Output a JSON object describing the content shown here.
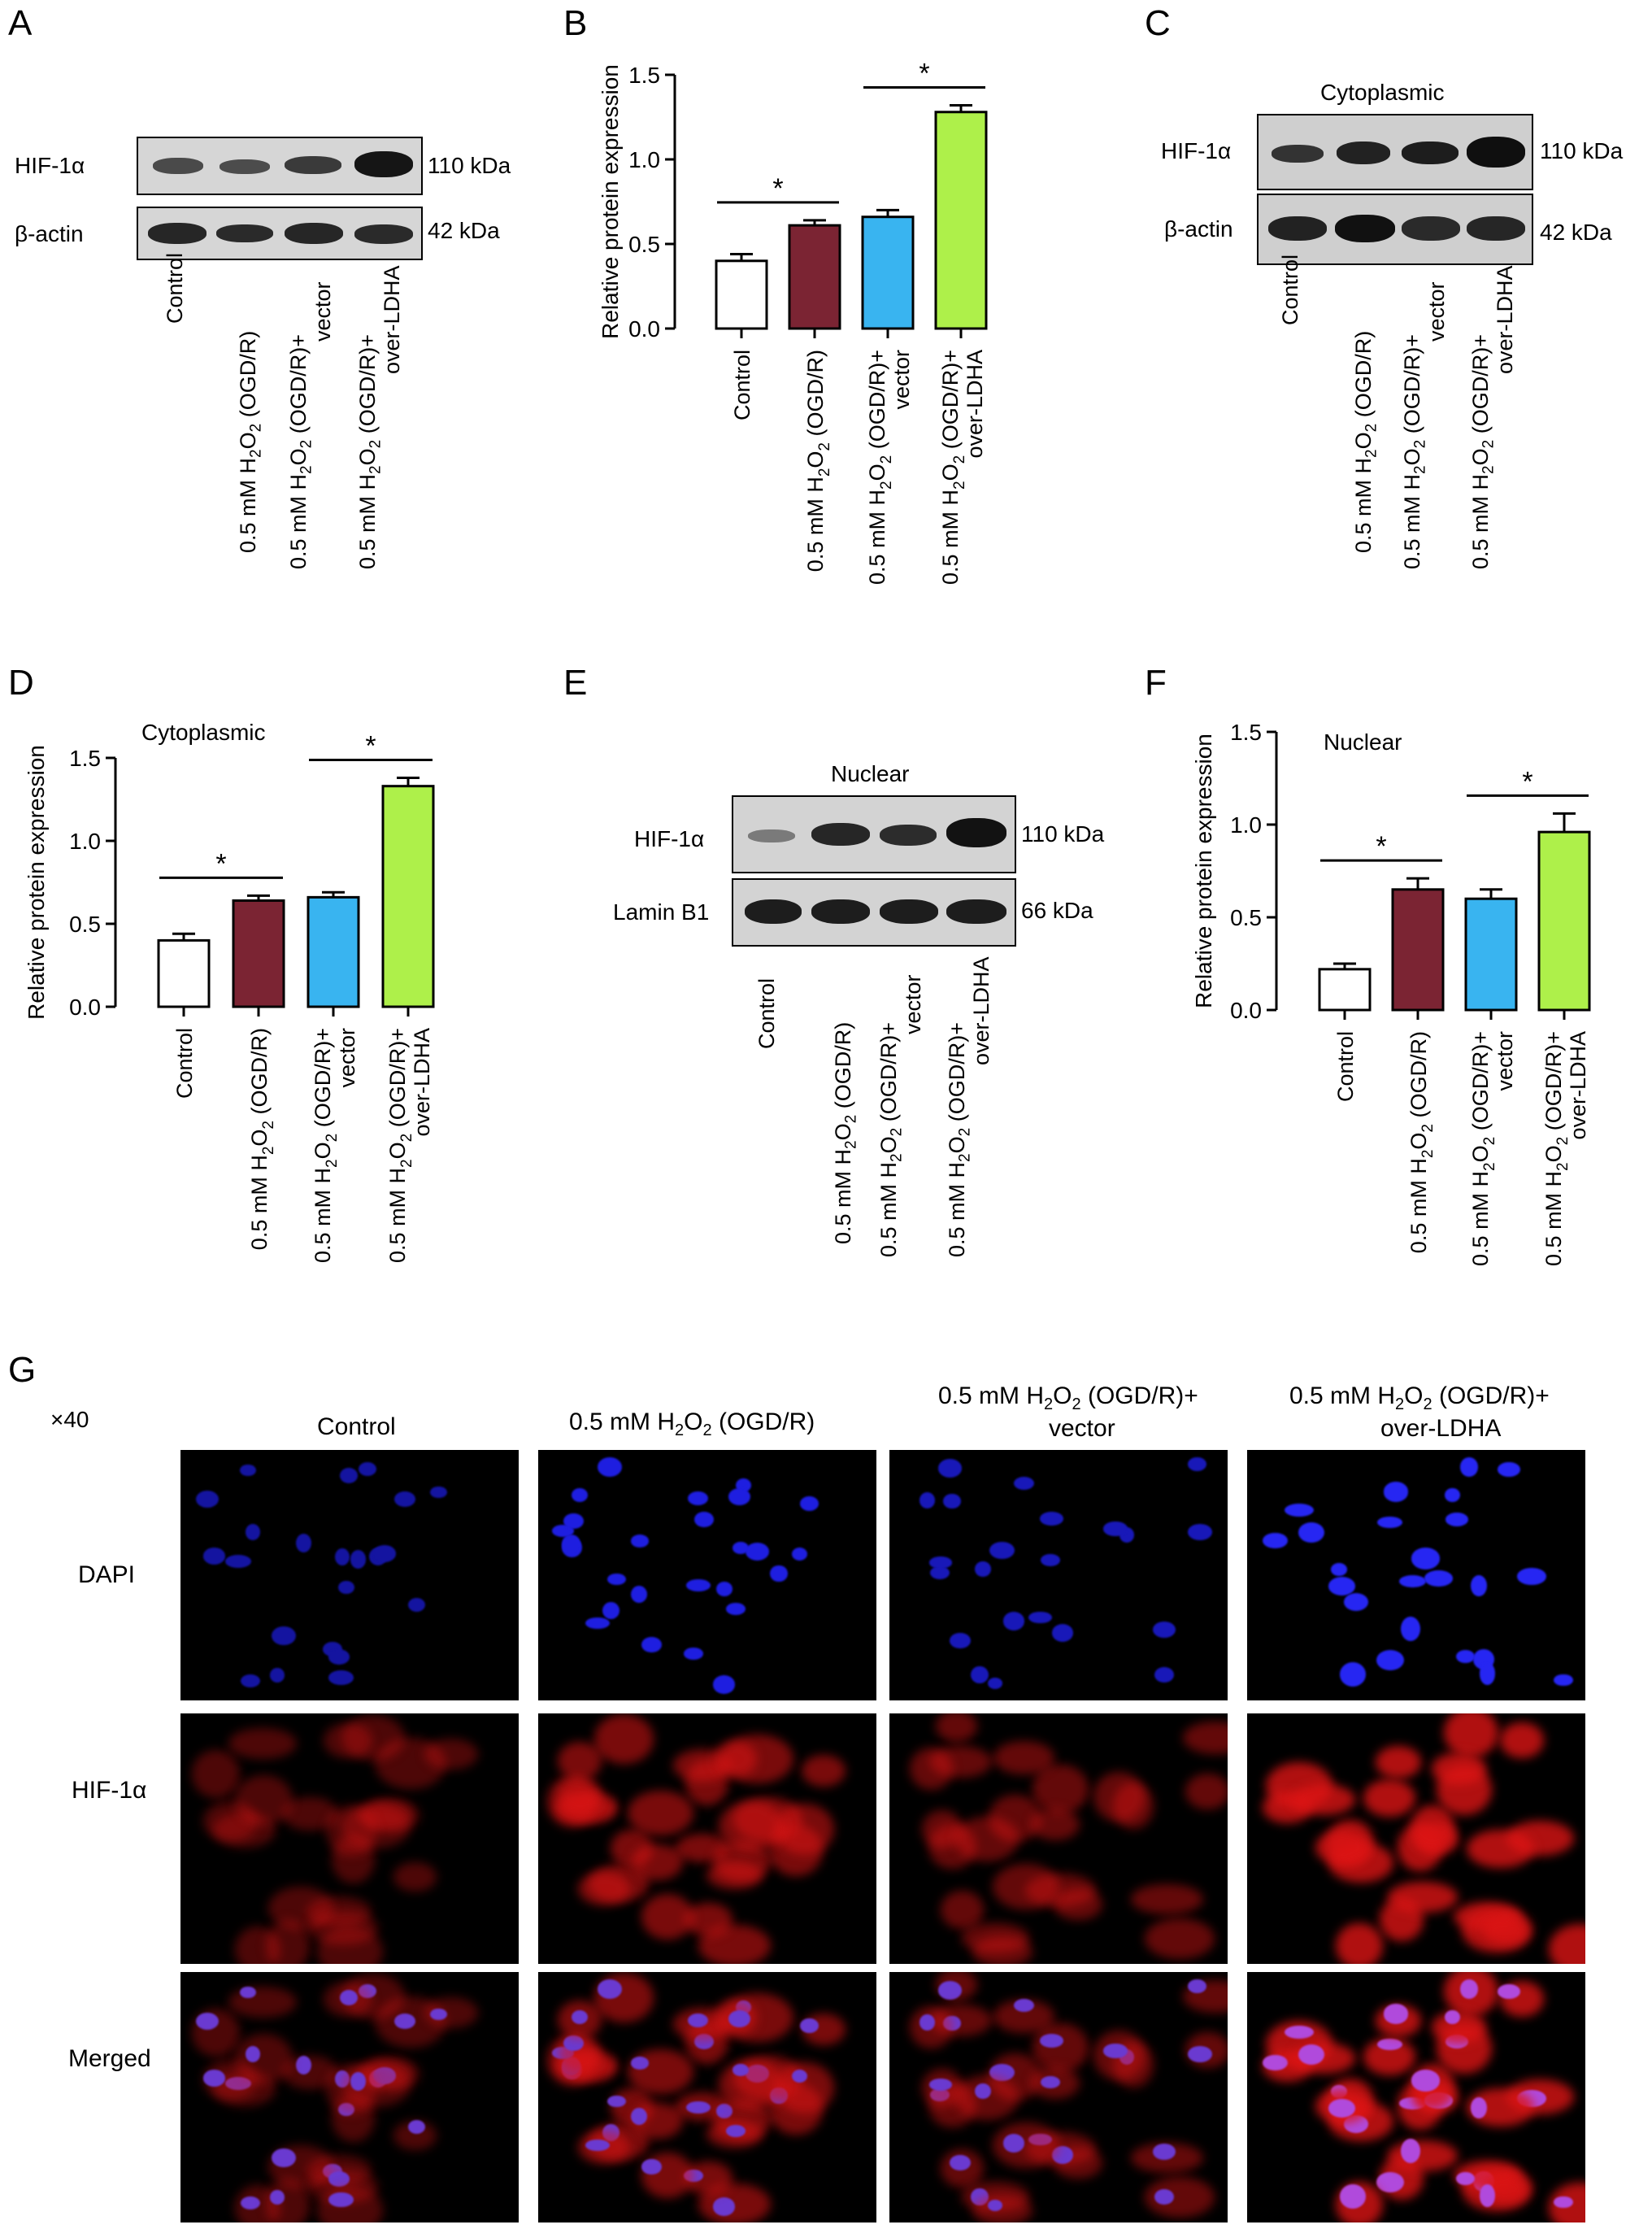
{
  "panels": {
    "A": "A",
    "B": "B",
    "C": "C",
    "D": "D",
    "E": "E",
    "F": "F",
    "G": "G"
  },
  "groups": {
    "control": "Control",
    "h2o2_prefix": "0.5 mM H",
    "sub2": "2",
    "o": "O",
    "ogdr": " (OGD/R)",
    "ogdr_plus": " (OGD/R)+",
    "vector": "vector",
    "over_ldha": "over-LDHA"
  },
  "blots": {
    "A": {
      "rows": [
        {
          "protein": "HIF-1α",
          "size": "110 kDa"
        },
        {
          "protein": "β-actin",
          "size": "42 kDa"
        }
      ]
    },
    "C": {
      "title": "Cytoplasmic",
      "rows": [
        {
          "protein": "HIF-1α",
          "size": "110 kDa"
        },
        {
          "protein": "β-actin",
          "size": "42 kDa"
        }
      ]
    },
    "E": {
      "title": "Nuclear",
      "rows": [
        {
          "protein": "HIF-1α",
          "size": "110 kDa"
        },
        {
          "protein": "Lamin B1",
          "size": "66 kDa"
        }
      ]
    }
  },
  "chart_data": [
    {
      "panel": "B",
      "type": "bar",
      "title": "",
      "ylabel": "Relative protein expression",
      "ylim": [
        0,
        1.5
      ],
      "yticks": [
        "0.0",
        "0.5",
        "1.0",
        "1.5"
      ],
      "categories": [
        "Control",
        "0.5 mM H2O2 (OGD/R)",
        "0.5 mM H2O2 (OGD/R)+ vector",
        "0.5 mM H2O2 (OGD/R)+ over-LDHA"
      ],
      "values": [
        0.4,
        0.61,
        0.66,
        1.28
      ],
      "errors": [
        0.04,
        0.03,
        0.04,
        0.04
      ],
      "colors": [
        "#ffffff",
        "#7b2433",
        "#39b4f0",
        "#aef04a"
      ],
      "significance": [
        {
          "from": 0,
          "to": 1,
          "label": "*"
        },
        {
          "from": 2,
          "to": 3,
          "label": "*"
        }
      ]
    },
    {
      "panel": "D",
      "type": "bar",
      "title": "Cytoplasmic",
      "ylabel": "Relative protein expression",
      "ylim": [
        0,
        1.5
      ],
      "yticks": [
        "0.0",
        "0.5",
        "1.0",
        "1.5"
      ],
      "categories": [
        "Control",
        "0.5 mM H2O2 (OGD/R)",
        "0.5 mM H2O2 (OGD/R)+ vector",
        "0.5 mM H2O2 (OGD/R)+ over-LDHA"
      ],
      "values": [
        0.4,
        0.64,
        0.66,
        1.33
      ],
      "errors": [
        0.04,
        0.03,
        0.03,
        0.05
      ],
      "colors": [
        "#ffffff",
        "#7b2433",
        "#39b4f0",
        "#aef04a"
      ],
      "significance": [
        {
          "from": 0,
          "to": 1,
          "label": "*"
        },
        {
          "from": 2,
          "to": 3,
          "label": "*"
        }
      ]
    },
    {
      "panel": "F",
      "type": "bar",
      "title": "Nuclear",
      "ylabel": "Relative protein expression",
      "ylim": [
        0,
        1.5
      ],
      "yticks": [
        "0.0",
        "0.5",
        "1.0",
        "1.5"
      ],
      "categories": [
        "Control",
        "0.5 mM H2O2 (OGD/R)",
        "0.5 mM H2O2 (OGD/R)+ vector",
        "0.5 mM H2O2 (OGD/R)+ over-LDHA"
      ],
      "values": [
        0.22,
        0.65,
        0.6,
        0.96
      ],
      "errors": [
        0.03,
        0.06,
        0.05,
        0.1
      ],
      "colors": [
        "#ffffff",
        "#7b2433",
        "#39b4f0",
        "#aef04a"
      ],
      "significance": [
        {
          "from": 0,
          "to": 1,
          "label": "*"
        },
        {
          "from": 2,
          "to": 3,
          "label": "*"
        }
      ]
    }
  ],
  "microscopy": {
    "magnification": "×40",
    "columns": [
      "Control",
      "0.5 mM H2O2 (OGD/R)",
      "0.5 mM H2O2 (OGD/R)+ vector",
      "0.5 mM H2O2 (OGD/R)+ over-LDHA"
    ],
    "rows": [
      "DAPI",
      "HIF-1α",
      "Merged"
    ],
    "col_line2": "vector",
    "col_line2b": "over-LDHA"
  }
}
